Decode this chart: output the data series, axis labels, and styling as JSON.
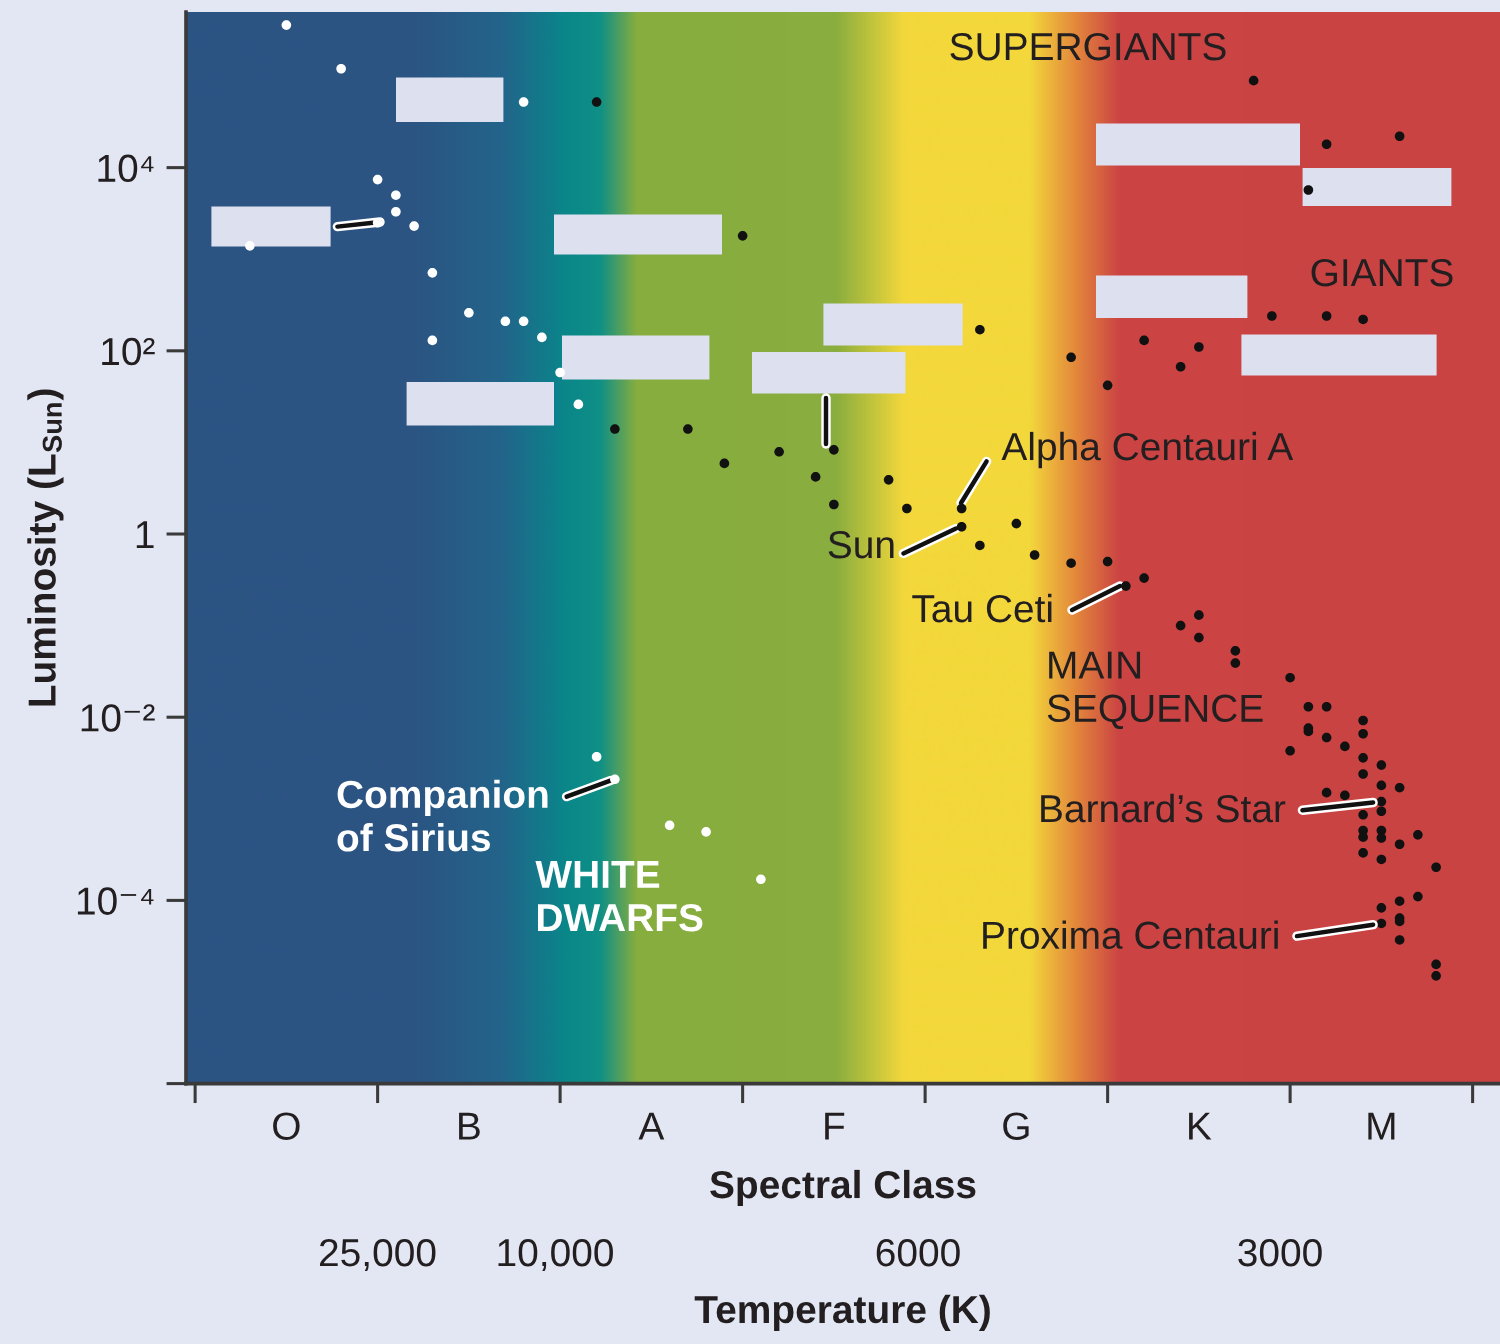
{
  "chart_data": {
    "type": "scatter",
    "log": "y",
    "marker": "circle",
    "xlabel": "Spectral Class",
    "x2label": "Temperature (K)",
    "ylabel": "Luminosity (L$_{Sun}$)",
    "categories": [
      null,
      null,
      null,
      null,
      null,
      "O",
      null,
      null,
      null,
      null,
      null,
      null,
      null,
      null,
      null,
      "B",
      null,
      null,
      null,
      null,
      null,
      null,
      null,
      null,
      null,
      "A",
      null,
      null,
      null,
      null,
      null,
      null,
      null,
      null,
      null,
      "F",
      null,
      null,
      null,
      null,
      null,
      null,
      null,
      null,
      null,
      "G",
      null,
      null,
      null,
      null,
      null,
      null,
      null,
      null,
      null,
      "K",
      null,
      null,
      null,
      null,
      null,
      null,
      null,
      null,
      null,
      "M",
      null,
      null,
      null,
      null,
      null,
      null
    ],
    "ylim": [
      1e-06,
      500000
    ],
    "yticks": [
      {
        "value": 10000,
        "label": "10⁴"
      },
      {
        "value": 100,
        "label": "10²"
      },
      {
        "value": 1,
        "label": "1"
      },
      {
        "value": 0.01,
        "label": "10⁻²"
      },
      {
        "value": 0.0001,
        "label": "10⁻⁴"
      },
      {
        "value": 1e-06,
        "label": null
      }
    ],
    "series": [
      {
        "color": "#ffffff",
        "values": [
          null,
          null,
          null,
          1400,
          null,
          360000,
          null,
          null,
          120000,
          null,
          7400,
          5000,
          2300,
          710,
          null,
          260,
          null,
          210,
          52000,
          140,
          58,
          26,
          0.0037,
          0.0021,
          null,
          null,
          0.00066,
          null,
          0.00056,
          null,
          null,
          0.00017,
          null,
          null,
          null,
          null,
          null,
          null,
          null,
          null,
          null,
          null,
          null,
          null,
          null,
          null,
          null,
          null,
          null,
          null,
          null,
          null,
          null,
          null,
          null,
          null,
          null,
          null,
          null,
          null,
          null,
          null,
          null,
          null,
          null,
          null,
          null,
          null,
          null,
          null,
          null,
          null
        ]
      },
      {
        "color": "#ffffff",
        "values": [
          null,
          null,
          null,
          null,
          null,
          null,
          null,
          null,
          null,
          null,
          2500,
          3300,
          null,
          130,
          null,
          null,
          null,
          null,
          210,
          null,
          null,
          null,
          null,
          null,
          null,
          null,
          null,
          null,
          null,
          null,
          null,
          null,
          null,
          null,
          null,
          null,
          null,
          null,
          null,
          null,
          null,
          null,
          null,
          null,
          null,
          null,
          null,
          null,
          null,
          null,
          null,
          null,
          null,
          null,
          null,
          null,
          null,
          null,
          null,
          null,
          null,
          null,
          null,
          null,
          null,
          null,
          null,
          null,
          null,
          null,
          null,
          null
        ]
      },
      {
        "color": "#111111",
        "values": [
          null,
          null,
          null,
          null,
          null,
          null,
          null,
          null,
          null,
          null,
          null,
          null,
          null,
          null,
          null,
          null,
          null,
          null,
          null,
          null,
          null,
          null,
          52000,
          14,
          null,
          null,
          null,
          14,
          null,
          5.9,
          1800,
          null,
          7.9,
          null,
          4.2,
          8.3,
          null,
          null,
          3.9,
          1.9,
          null,
          null,
          1.9,
          0.75,
          null,
          1.3,
          0.59,
          null,
          0.48,
          null,
          0.5,
          0.27,
          0.33,
          null,
          0.1,
          0.13,
          null,
          0.053,
          89000,
          240,
          0.027,
          0.013,
          0.013,
          0.0048,
          0.0092,
          0.003,
          0.0017,
          0.00052,
          0.00023,
          null,
          null,
          null
        ]
      },
      {
        "color": "#111111",
        "values": [
          null,
          null,
          null,
          null,
          null,
          null,
          null,
          null,
          null,
          null,
          null,
          null,
          null,
          null,
          null,
          null,
          null,
          null,
          null,
          null,
          null,
          null,
          null,
          null,
          null,
          null,
          null,
          null,
          null,
          null,
          null,
          null,
          null,
          null,
          null,
          2.1,
          null,
          null,
          null,
          null,
          null,
          null,
          1.2,
          170,
          null,
          null,
          null,
          null,
          85,
          null,
          42,
          null,
          130,
          null,
          67,
          0.074,
          null,
          0.039,
          null,
          null,
          0.0043,
          0.0076,
          0.006,
          0.0014,
          0.0066,
          0.0018,
          0.00041,
          0.00011,
          2e-05,
          null,
          null,
          null
        ]
      },
      {
        "color": "#111111",
        "values": [
          null,
          null,
          null,
          null,
          null,
          null,
          null,
          null,
          null,
          null,
          null,
          null,
          null,
          null,
          null,
          null,
          null,
          null,
          null,
          null,
          null,
          null,
          null,
          null,
          null,
          null,
          null,
          null,
          null,
          null,
          null,
          null,
          null,
          null,
          null,
          null,
          null,
          null,
          null,
          null,
          null,
          null,
          null,
          null,
          null,
          null,
          null,
          null,
          null,
          null,
          null,
          null,
          null,
          null,
          null,
          110,
          null,
          null,
          null,
          null,
          null,
          0.007,
          0.0015,
          null,
          0.0036,
          0.0012,
          9.8e-05,
          null,
          1.5e-05,
          null,
          null,
          null
        ]
      },
      {
        "color": "#111111",
        "values": [
          null,
          null,
          null,
          null,
          null,
          null,
          null,
          null,
          null,
          null,
          null,
          null,
          null,
          null,
          null,
          null,
          null,
          null,
          null,
          null,
          null,
          null,
          null,
          null,
          null,
          null,
          null,
          null,
          null,
          null,
          null,
          null,
          null,
          null,
          null,
          null,
          null,
          null,
          null,
          null,
          null,
          null,
          null,
          null,
          null,
          null,
          null,
          null,
          null,
          null,
          null,
          null,
          null,
          null,
          null,
          null,
          null,
          null,
          null,
          null,
          null,
          5700,
          18000,
          null,
          0.0024,
          0.00094,
          6.4e-05,
          null,
          null,
          null,
          null,
          null
        ]
      },
      {
        "color": "#111111",
        "values": [
          null,
          null,
          null,
          null,
          null,
          null,
          null,
          null,
          null,
          null,
          null,
          null,
          null,
          null,
          null,
          null,
          null,
          null,
          null,
          null,
          null,
          null,
          null,
          null,
          null,
          null,
          null,
          null,
          null,
          null,
          null,
          null,
          null,
          null,
          null,
          null,
          null,
          null,
          null,
          null,
          null,
          null,
          null,
          null,
          null,
          null,
          null,
          null,
          null,
          null,
          null,
          null,
          null,
          null,
          null,
          null,
          null,
          null,
          null,
          null,
          null,
          null,
          240,
          null,
          0.00086,
          0.00058,
          5.9e-05,
          null,
          null,
          null,
          null,
          null
        ]
      },
      {
        "color": "#111111",
        "values": [
          null,
          null,
          null,
          null,
          null,
          null,
          null,
          null,
          null,
          null,
          null,
          null,
          null,
          null,
          null,
          null,
          null,
          null,
          null,
          null,
          null,
          null,
          null,
          null,
          null,
          null,
          null,
          null,
          null,
          null,
          null,
          null,
          null,
          null,
          null,
          null,
          null,
          null,
          null,
          null,
          null,
          null,
          null,
          null,
          null,
          null,
          null,
          null,
          null,
          null,
          null,
          null,
          null,
          null,
          null,
          null,
          null,
          null,
          null,
          null,
          null,
          null,
          null,
          null,
          0.00058,
          0.00048,
          3.7e-05,
          null,
          null,
          null,
          null,
          null
        ]
      },
      {
        "color": "#111111",
        "values": [
          null,
          null,
          null,
          null,
          null,
          null,
          null,
          null,
          null,
          null,
          null,
          null,
          null,
          null,
          null,
          null,
          null,
          null,
          null,
          null,
          null,
          null,
          null,
          null,
          null,
          null,
          null,
          null,
          null,
          null,
          null,
          null,
          null,
          null,
          null,
          null,
          null,
          null,
          null,
          null,
          null,
          null,
          null,
          null,
          null,
          null,
          null,
          null,
          null,
          null,
          null,
          null,
          null,
          null,
          null,
          null,
          null,
          null,
          null,
          null,
          null,
          null,
          null,
          null,
          0.00049,
          0.00028,
          22000,
          null,
          null,
          null,
          null,
          null
        ]
      },
      {
        "color": "#111111",
        "values": [
          null,
          null,
          null,
          null,
          null,
          null,
          null,
          null,
          null,
          null,
          null,
          null,
          null,
          null,
          null,
          null,
          null,
          null,
          null,
          null,
          null,
          null,
          null,
          null,
          null,
          null,
          null,
          null,
          null,
          null,
          null,
          null,
          null,
          null,
          null,
          null,
          null,
          null,
          null,
          null,
          null,
          null,
          null,
          null,
          null,
          null,
          null,
          null,
          null,
          null,
          null,
          null,
          null,
          null,
          null,
          null,
          null,
          null,
          null,
          null,
          null,
          null,
          null,
          null,
          0.00033,
          8.3e-05,
          null,
          null,
          null,
          null,
          null,
          null
        ]
      },
      {
        "color": "#111111",
        "values": [
          null,
          null,
          null,
          null,
          null,
          null,
          null,
          null,
          null,
          null,
          null,
          null,
          null,
          null,
          null,
          null,
          null,
          null,
          null,
          null,
          null,
          null,
          null,
          null,
          null,
          null,
          null,
          null,
          null,
          null,
          null,
          null,
          null,
          null,
          null,
          null,
          null,
          null,
          null,
          null,
          null,
          null,
          null,
          null,
          null,
          null,
          null,
          null,
          null,
          null,
          null,
          null,
          null,
          null,
          null,
          null,
          null,
          null,
          null,
          null,
          null,
          null,
          null,
          null,
          220,
          5.6e-05,
          null,
          null,
          null,
          null,
          null,
          null
        ]
      }
    ],
    "annotations": [
      "SUPERGIANTS",
      "GIANTS",
      "MAIN\nSEQUENCE",
      "WHITE\nDWARFS",
      "Companion\nof Sirius",
      "Alpha Centauri A",
      "Sun",
      "Tau Ceti",
      {
        "text": "Barnard’s Star",
        "x": "M",
        "y": 0.0012
      },
      {
        "text": "Proxima Centauri",
        "x": "M",
        "y": 5.6e-05
      },
      "25,000",
      "10,000",
      "6000",
      "3000"
    ]
  }
}
